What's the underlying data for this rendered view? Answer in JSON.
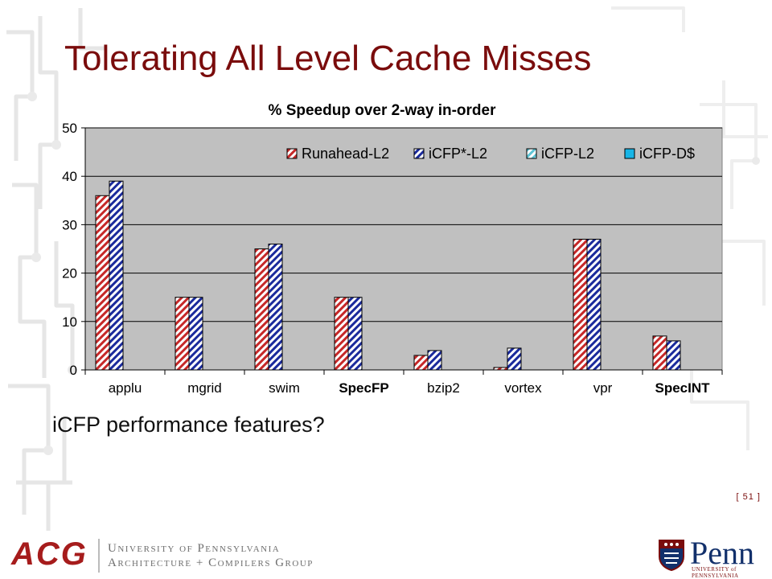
{
  "slide": {
    "title": "Tolerating All Level Cache Misses",
    "body_text": "iCFP performance features?",
    "page_number": "[ 51 ]"
  },
  "logos": {
    "acg": "ACG",
    "acg_line1": "University of Pennsylvania",
    "acg_line2": "Architecture + Compilers Group",
    "penn_word": "Penn",
    "penn_sub": "UNIVERSITY of PENNSYLVANIA"
  },
  "colors": {
    "title": "#7a0c0c",
    "plot_bg": "#c0c0c0",
    "runahead": "#c62828",
    "icfp_star": "#1a2a9c",
    "icfp_l2": "#5ec4d4",
    "icfp_d": "#17b5e6"
  },
  "chart_data": {
    "type": "bar",
    "title": "% Speedup over 2-way in-order",
    "categories": [
      "applu",
      "mgrid",
      "swim",
      "SpecFP",
      "bzip2",
      "vortex",
      "vpr",
      "SpecINT"
    ],
    "bold_categories": [
      "SpecFP",
      "SpecINT"
    ],
    "ylim": [
      0,
      50
    ],
    "yticks": [
      0,
      10,
      20,
      30,
      40,
      50
    ],
    "grid": true,
    "legend_position": "top-right",
    "series": [
      {
        "name": "Runahead-L2",
        "pattern": "hatch",
        "values": [
          36,
          15,
          25,
          15,
          3,
          0.5,
          27,
          7
        ]
      },
      {
        "name": "iCFP*-L2",
        "pattern": "hatch",
        "values": [
          39,
          15,
          26,
          15,
          4,
          4.5,
          27,
          6
        ]
      },
      {
        "name": "iCFP-L2",
        "pattern": "hatch",
        "values": [
          null,
          null,
          null,
          null,
          null,
          null,
          null,
          null
        ]
      },
      {
        "name": "iCFP-D$",
        "pattern": "solid",
        "values": [
          null,
          null,
          null,
          null,
          null,
          null,
          null,
          null
        ]
      }
    ]
  }
}
